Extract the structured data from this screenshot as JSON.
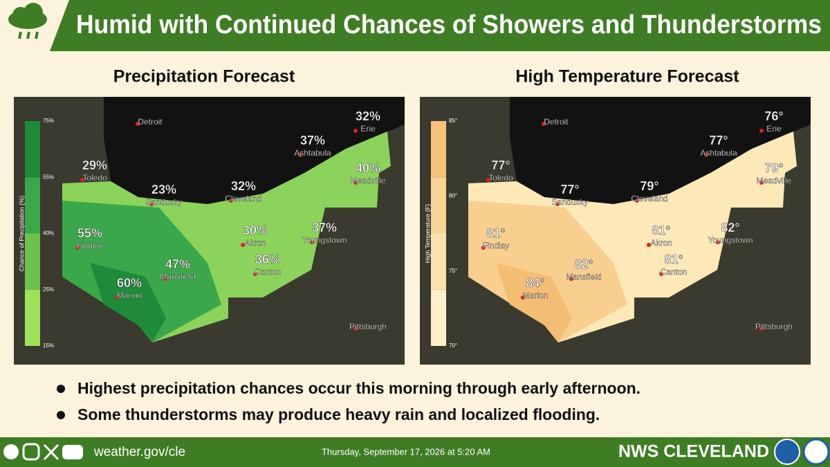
{
  "header": {
    "title": "Humid with Continued Chances of Showers and Thunderstorms"
  },
  "maps": [
    {
      "title": "Precipitation Forecast",
      "legend": {
        "title": "Chance of Precipitation (%)",
        "ticks": [
          "75%",
          "55%",
          "40%",
          "25%",
          "15%"
        ]
      },
      "places": [
        {
          "name": "Detroit"
        },
        {
          "name": "Erie",
          "value": "32%"
        },
        {
          "name": "Ashtabula",
          "value": "37%"
        },
        {
          "name": "Meadville",
          "value": "40%"
        },
        {
          "name": "Toledo",
          "value": "29%"
        },
        {
          "name": "Sandusky",
          "value": "23%"
        },
        {
          "name": "Cleveland",
          "value": "32%"
        },
        {
          "name": "Findlay",
          "value": "55%"
        },
        {
          "name": "Akron",
          "value": "30%"
        },
        {
          "name": "Youngstown",
          "value": "37%"
        },
        {
          "name": "Canton",
          "value": "36%"
        },
        {
          "name": "Mansfield",
          "value": "47%"
        },
        {
          "name": "Marion",
          "value": "60%"
        },
        {
          "name": "Pittsburgh"
        }
      ]
    },
    {
      "title": "High Temperature  Forecast",
      "legend": {
        "title": "High Temperature (F)",
        "ticks": [
          "85°",
          "80°",
          "75°",
          "70°"
        ]
      },
      "places": [
        {
          "name": "Detroit"
        },
        {
          "name": "Erie",
          "value": "76°"
        },
        {
          "name": "Ashtabula",
          "value": "77°"
        },
        {
          "name": "Meadville",
          "value": "79°"
        },
        {
          "name": "Toledo",
          "value": "77°"
        },
        {
          "name": "Sandusky",
          "value": "77°"
        },
        {
          "name": "Cleveland",
          "value": "79°"
        },
        {
          "name": "Findlay",
          "value": "81°"
        },
        {
          "name": "Akron",
          "value": "81°"
        },
        {
          "name": "Youngstown",
          "value": "82°"
        },
        {
          "name": "Canton",
          "value": "81°"
        },
        {
          "name": "Mansfield",
          "value": "82°"
        },
        {
          "name": "Marion",
          "value": "84°"
        },
        {
          "name": "Pittsburgh"
        }
      ]
    }
  ],
  "bullets": [
    "Highest precipitation chances occur this morning through early afternoon.",
    "Some thunderstorms may produce heavy rain and localized flooding."
  ],
  "footer": {
    "website": "weather.gov/cle",
    "timestamp": "Thursday, September 17, 2026 at 5:20 AM",
    "office": "NWS CLEVELAND"
  }
}
